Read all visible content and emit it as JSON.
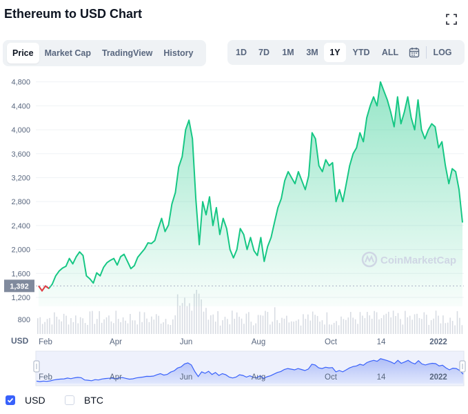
{
  "header": {
    "title": "Ethereum to USD Chart",
    "expand_icon": "expand-icon"
  },
  "tabs_left": [
    {
      "label": "Price",
      "active": true
    },
    {
      "label": "Market Cap",
      "active": false
    },
    {
      "label": "TradingView",
      "active": false
    },
    {
      "label": "History",
      "active": false
    }
  ],
  "tabs_right": [
    {
      "label": "1D",
      "active": false
    },
    {
      "label": "7D",
      "active": false
    },
    {
      "label": "1M",
      "active": false
    },
    {
      "label": "3M",
      "active": false
    },
    {
      "label": "1Y",
      "active": true
    },
    {
      "label": "YTD",
      "active": false
    },
    {
      "label": "ALL",
      "active": false
    }
  ],
  "calendar_icon": "calendar-icon",
  "log_label": "LOG",
  "watermark": "CoinMarketCap",
  "currency_label": "USD",
  "legend": [
    {
      "label": "USD",
      "checked": true
    },
    {
      "label": "BTC",
      "checked": false
    }
  ],
  "colors": {
    "line": "#16c784",
    "below_line": "#ea3943",
    "accent": "#3861fb",
    "reference_badge": "#808a9d"
  },
  "chart_data": {
    "type": "area",
    "title": "Ethereum to USD Chart",
    "ylabel": "USD",
    "ylim": [
      1050,
      4900
    ],
    "yticks": [
      1200,
      1600,
      2000,
      2400,
      2800,
      3200,
      3600,
      4000,
      4400,
      4800
    ],
    "ytick_labels": [
      "1,200",
      "1,600",
      "2,000",
      "2,400",
      "2,800",
      "3,200",
      "3,600",
      "4,000",
      "4,400",
      "4,800"
    ],
    "volume_tick_label": "800",
    "xtick_labels": [
      "Feb",
      "Apr",
      "Jun",
      "Aug",
      "Oct",
      "14",
      "2022"
    ],
    "reference_value": 1392,
    "reference_label": "1,392",
    "series": [
      {
        "values": [
          1392,
          1310,
          1390,
          1350,
          1420,
          1560,
          1640,
          1690,
          1720,
          1850,
          1760,
          1880,
          1960,
          1900,
          1560,
          1510,
          1440,
          1610,
          1560,
          1700,
          1780,
          1820,
          1850,
          1740,
          1880,
          1920,
          1800,
          1680,
          1730,
          1870,
          1940,
          2010,
          2110,
          2100,
          2150,
          2350,
          2520,
          2300,
          2410,
          2760,
          2950,
          3380,
          3550,
          4000,
          4160,
          3850,
          2850,
          2080,
          2800,
          2580,
          2880,
          2400,
          2700,
          2250,
          2520,
          2350,
          2000,
          1860,
          2000,
          2350,
          2250,
          2000,
          2200,
          1980,
          1900,
          2200,
          1800,
          2050,
          2200,
          2450,
          2700,
          2850,
          3150,
          3300,
          3200,
          3100,
          3300,
          3150,
          3000,
          3230,
          3950,
          3850,
          3400,
          3300,
          3500,
          3400,
          3450,
          2800,
          3000,
          2800,
          3100,
          3400,
          3600,
          3700,
          3950,
          3800,
          4200,
          4400,
          4550,
          4400,
          4800,
          4650,
          4500,
          4300,
          4050,
          4550,
          4100,
          4300,
          4550,
          4200,
          4000,
          4500,
          4000,
          3850,
          4000,
          4100,
          4050,
          3700,
          3800,
          3400,
          3100,
          3350,
          3300,
          3000,
          2450
        ]
      }
    ],
    "volume_bars_drawn": 180,
    "navigator": {
      "xtick_labels": [
        "Feb",
        "Apr",
        "Jun",
        "Aug",
        "Oct",
        "14",
        "2022"
      ]
    },
    "grid": true
  }
}
